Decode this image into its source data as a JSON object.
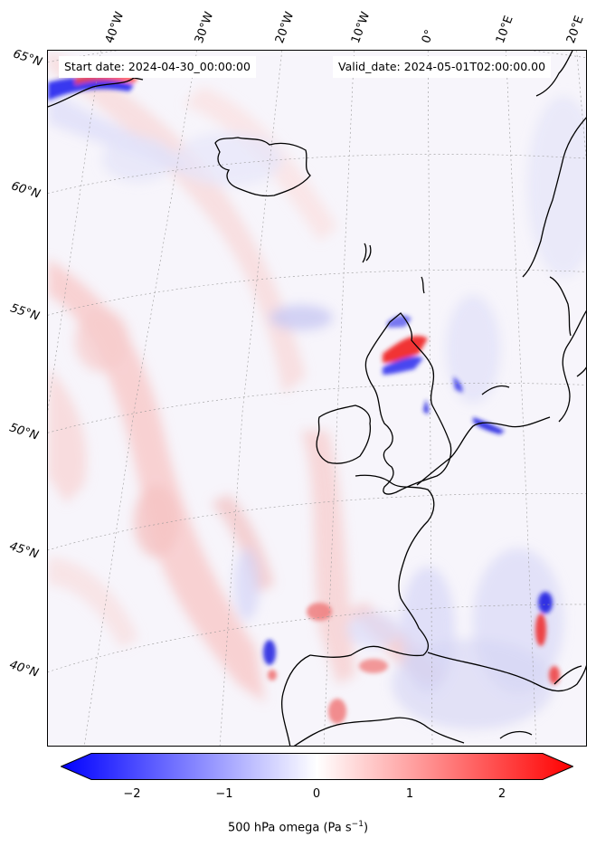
{
  "map": {
    "start_date_text": "Start date: 2024-04-30_00:00:00",
    "valid_date_text": "Valid_date: 2024-05-01T02:00:00.00",
    "lon_labels": [
      "40°W",
      "30°W",
      "20°W",
      "10°W",
      "0°",
      "10°E",
      "20°E"
    ],
    "lat_labels": [
      "65°N",
      "60°N",
      "55°N",
      "50°N",
      "45°N",
      "40°N"
    ],
    "grid": true,
    "coastline_color": "#000000"
  },
  "colorbar": {
    "title": "500 hPa omega (Pa s",
    "title_exponent": "−1",
    "title_suffix": ")",
    "ticks": [
      "−2",
      "−1",
      "0",
      "1",
      "2"
    ],
    "range": [
      -2.6,
      2.6
    ],
    "colormap": "bwr",
    "colors": {
      "negative": "#0000ff",
      "zero": "#ffffff",
      "positive": "#ff0000"
    }
  }
}
